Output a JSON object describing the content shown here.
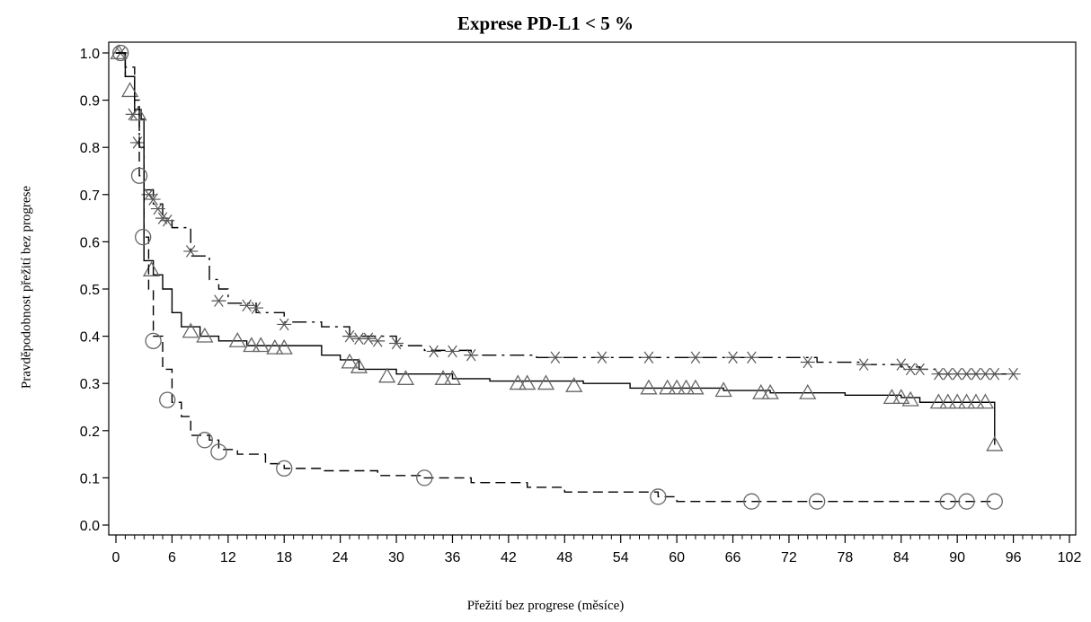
{
  "chart_data": {
    "type": "line",
    "title": "Exprese PD-L1 < 5 %",
    "xlabel": "Přežití bez progrese (měsíce)",
    "ylabel": "Pravděpodobnost přežití bez progrese",
    "xlim": [
      0,
      102
    ],
    "ylim": [
      0,
      1.0
    ],
    "x_ticks": [
      "0",
      "6",
      "12",
      "18",
      "24",
      "30",
      "36",
      "42",
      "48",
      "54",
      "60",
      "66",
      "72",
      "78",
      "84",
      "90",
      "96",
      "102"
    ],
    "y_ticks": [
      "0.0",
      "0.1",
      "0.2",
      "0.3",
      "0.4",
      "0.5",
      "0.6",
      "0.7",
      "0.8",
      "0.9",
      "1.0"
    ],
    "grid": false,
    "legend": "none",
    "series": [
      {
        "line_style": "dash-dot",
        "censor_marker": "asterisk",
        "x": [
          0,
          1,
          2,
          2.5,
          3,
          4,
          5,
          6,
          8,
          10,
          11,
          12,
          15,
          18,
          22,
          25,
          30,
          33,
          38,
          45,
          50,
          55,
          60,
          70,
          75,
          80,
          84,
          86,
          88,
          96
        ],
        "y": [
          1.0,
          0.95,
          0.87,
          0.8,
          0.71,
          0.68,
          0.65,
          0.63,
          0.57,
          0.52,
          0.5,
          0.47,
          0.45,
          0.43,
          0.42,
          0.4,
          0.38,
          0.37,
          0.36,
          0.355,
          0.355,
          0.355,
          0.355,
          0.355,
          0.345,
          0.34,
          0.335,
          0.33,
          0.32,
          0.32
        ],
        "censored": [
          [
            0.5,
            1.0
          ],
          [
            1.8,
            0.87
          ],
          [
            2.3,
            0.81
          ],
          [
            3.5,
            0.7
          ],
          [
            4,
            0.69
          ],
          [
            4.5,
            0.67
          ],
          [
            5,
            0.65
          ],
          [
            5.5,
            0.645
          ],
          [
            8,
            0.58
          ],
          [
            11,
            0.475
          ],
          [
            14,
            0.465
          ],
          [
            15,
            0.46
          ],
          [
            18,
            0.425
          ],
          [
            25,
            0.4
          ],
          [
            26,
            0.395
          ],
          [
            27,
            0.395
          ],
          [
            28,
            0.39
          ],
          [
            30,
            0.385
          ],
          [
            34,
            0.368
          ],
          [
            36,
            0.368
          ],
          [
            38,
            0.36
          ],
          [
            47,
            0.355
          ],
          [
            52,
            0.355
          ],
          [
            57,
            0.355
          ],
          [
            62,
            0.355
          ],
          [
            66,
            0.355
          ],
          [
            68,
            0.355
          ],
          [
            74,
            0.345
          ],
          [
            80,
            0.34
          ],
          [
            84,
            0.34
          ],
          [
            85,
            0.33
          ],
          [
            86,
            0.33
          ],
          [
            88,
            0.32
          ],
          [
            89,
            0.32
          ],
          [
            90,
            0.32
          ],
          [
            91,
            0.32
          ],
          [
            92,
            0.32
          ],
          [
            93,
            0.32
          ],
          [
            94,
            0.32
          ],
          [
            96,
            0.32
          ]
        ]
      },
      {
        "line_style": "solid",
        "censor_marker": "triangle",
        "x": [
          0,
          1,
          2,
          2.7,
          3,
          4,
          5,
          6,
          7,
          9,
          11,
          14,
          18,
          22,
          24,
          26,
          30,
          36,
          40,
          50,
          55,
          60,
          65,
          70,
          78,
          84,
          86,
          90,
          94,
          94
        ],
        "y": [
          1.0,
          0.95,
          0.88,
          0.86,
          0.56,
          0.53,
          0.5,
          0.45,
          0.42,
          0.4,
          0.39,
          0.38,
          0.38,
          0.36,
          0.35,
          0.33,
          0.32,
          0.31,
          0.305,
          0.3,
          0.29,
          0.29,
          0.285,
          0.28,
          0.275,
          0.27,
          0.26,
          0.26,
          0.26,
          0.17
        ],
        "censored": [
          [
            0.3,
            1.0
          ],
          [
            1.5,
            0.92
          ],
          [
            2.4,
            0.87
          ],
          [
            3.8,
            0.54
          ],
          [
            8,
            0.41
          ],
          [
            9.5,
            0.4
          ],
          [
            13,
            0.39
          ],
          [
            14.5,
            0.38
          ],
          [
            15.5,
            0.38
          ],
          [
            17,
            0.375
          ],
          [
            18,
            0.375
          ],
          [
            25,
            0.345
          ],
          [
            26,
            0.335
          ],
          [
            29,
            0.315
          ],
          [
            31,
            0.31
          ],
          [
            35,
            0.31
          ],
          [
            36,
            0.31
          ],
          [
            43,
            0.3
          ],
          [
            44,
            0.3
          ],
          [
            46,
            0.3
          ],
          [
            49,
            0.295
          ],
          [
            57,
            0.29
          ],
          [
            59,
            0.29
          ],
          [
            60,
            0.29
          ],
          [
            61,
            0.29
          ],
          [
            62,
            0.29
          ],
          [
            65,
            0.285
          ],
          [
            69,
            0.28
          ],
          [
            70,
            0.28
          ],
          [
            74,
            0.28
          ],
          [
            83,
            0.27
          ],
          [
            84,
            0.27
          ],
          [
            85,
            0.265
          ],
          [
            88,
            0.26
          ],
          [
            89,
            0.26
          ],
          [
            90,
            0.26
          ],
          [
            91,
            0.26
          ],
          [
            92,
            0.26
          ],
          [
            93,
            0.26
          ],
          [
            94,
            0.17
          ]
        ]
      },
      {
        "line_style": "dashed",
        "censor_marker": "circle",
        "x": [
          0,
          1,
          2,
          2.5,
          3,
          3.5,
          4,
          5,
          6,
          7,
          8,
          10,
          11,
          13,
          16,
          18,
          22,
          28,
          33,
          38,
          44,
          48,
          58,
          60,
          75,
          94
        ],
        "y": [
          1.0,
          0.97,
          0.9,
          0.74,
          0.61,
          0.5,
          0.4,
          0.33,
          0.26,
          0.23,
          0.19,
          0.18,
          0.16,
          0.15,
          0.13,
          0.12,
          0.115,
          0.105,
          0.1,
          0.09,
          0.08,
          0.07,
          0.06,
          0.05,
          0.05,
          0.05
        ],
        "censored": [
          [
            0.5,
            1.0
          ],
          [
            2.5,
            0.74
          ],
          [
            2.9,
            0.61
          ],
          [
            4,
            0.39
          ],
          [
            5.5,
            0.265
          ],
          [
            9.5,
            0.18
          ],
          [
            11,
            0.155
          ],
          [
            18,
            0.12
          ],
          [
            33,
            0.1
          ],
          [
            58,
            0.06
          ],
          [
            68,
            0.05
          ],
          [
            75,
            0.05
          ],
          [
            89,
            0.05
          ],
          [
            91,
            0.05
          ],
          [
            94,
            0.05
          ]
        ]
      }
    ]
  }
}
